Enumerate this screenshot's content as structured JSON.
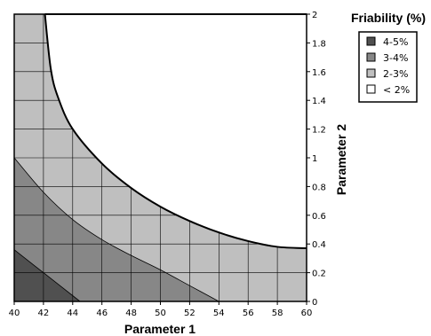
{
  "chart_data": {
    "type": "area",
    "title": "",
    "xlabel": "Parameter 1",
    "ylabel": "Parameter 2",
    "xlim": [
      40,
      60
    ],
    "ylim": [
      0,
      2
    ],
    "x_ticks": [
      "40",
      "42",
      "44",
      "46",
      "48",
      "50",
      "52",
      "54",
      "56",
      "58",
      "60"
    ],
    "y_ticks": [
      "0",
      "0.2",
      "0.4",
      "0.6",
      "0.8",
      "1",
      "1.2",
      "1.4",
      "1.6",
      "1.8",
      "2"
    ],
    "grid": true,
    "legend": {
      "title": "Friability (%)",
      "placement": "right",
      "entries": [
        {
          "label": "4-5%",
          "color": "#505050"
        },
        {
          "label": "3-4%",
          "color": "#878787"
        },
        {
          "label": "2-3%",
          "color": "#bfbfbf"
        },
        {
          "label": "< 2%",
          "color": "#ffffff"
        }
      ]
    },
    "series": [
      {
        "name": "4-5%",
        "boundary": [
          [
            40,
            0.36
          ],
          [
            42,
            0.2
          ],
          [
            44.5,
            0
          ]
        ]
      },
      {
        "name": "3-4%",
        "boundary": [
          [
            40,
            1.0
          ],
          [
            42,
            0.76
          ],
          [
            44,
            0.57
          ],
          [
            46,
            0.43
          ],
          [
            48,
            0.32
          ],
          [
            50,
            0.22
          ],
          [
            52,
            0.11
          ],
          [
            54,
            0
          ]
        ]
      },
      {
        "name": "2-3%",
        "boundary": [
          [
            42.1,
            2.0
          ],
          [
            42.5,
            1.62
          ],
          [
            43,
            1.42
          ],
          [
            44,
            1.2
          ],
          [
            46,
            0.96
          ],
          [
            48,
            0.79
          ],
          [
            50,
            0.66
          ],
          [
            52,
            0.56
          ],
          [
            54,
            0.48
          ],
          [
            56,
            0.42
          ],
          [
            58,
            0.38
          ],
          [
            60,
            0.37
          ]
        ]
      }
    ]
  }
}
